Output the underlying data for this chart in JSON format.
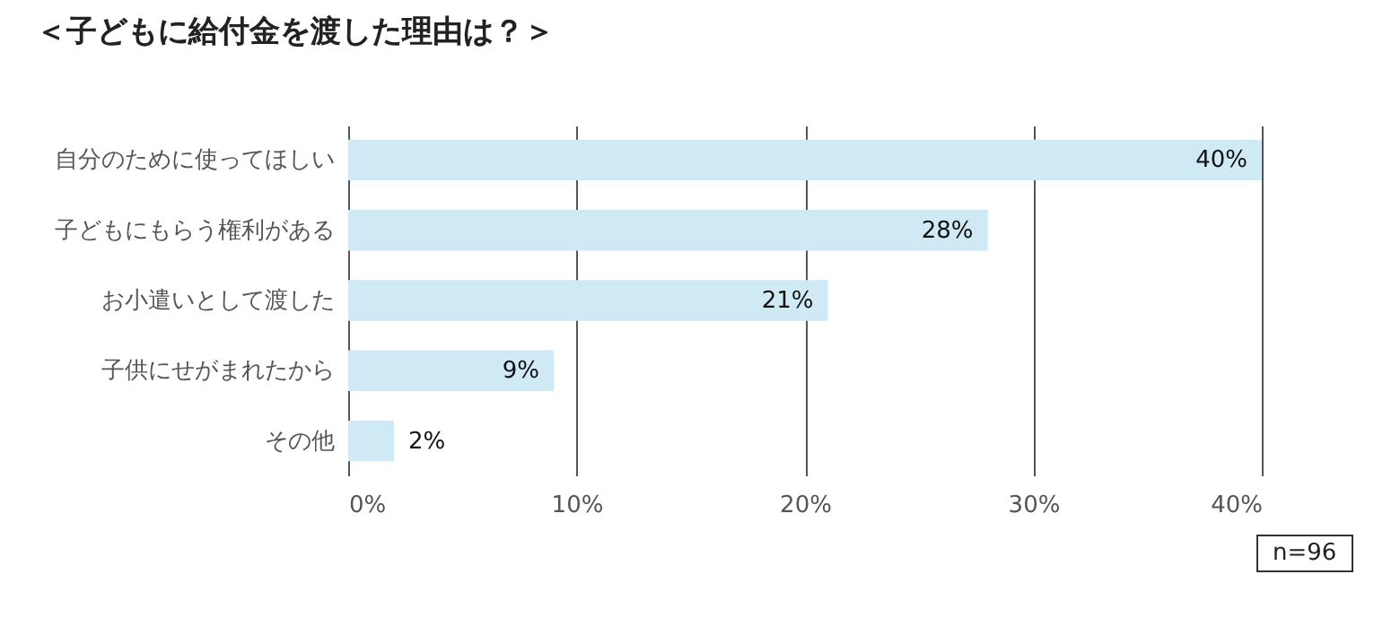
{
  "chart_data": {
    "type": "bar",
    "orientation": "horizontal",
    "title": "＜子どもに給付金を渡した理由は？＞",
    "categories": [
      "自分のために使ってほしい",
      "子どもにもらう権利がある",
      "お小遣いとして渡した",
      "子供にせがまれたから",
      "その他"
    ],
    "values": [
      40,
      28,
      21,
      9,
      2
    ],
    "color": "#cfe9f5",
    "value_labels": [
      "40%",
      "28%",
      "21%",
      "9%",
      "2%"
    ],
    "xlim": [
      0,
      40
    ],
    "xticks": [
      {
        "value": 0,
        "label": "0%"
      },
      {
        "value": 10,
        "label": "10%"
      },
      {
        "value": 20,
        "label": "20%"
      },
      {
        "value": 30,
        "label": "30%"
      },
      {
        "value": 40,
        "label": "40%"
      }
    ],
    "grid": "x",
    "annotations": [
      "n=96"
    ]
  }
}
